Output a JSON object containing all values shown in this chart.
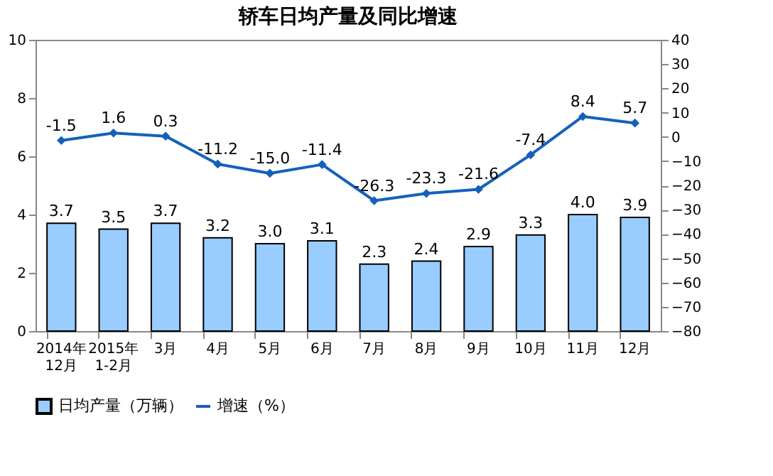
{
  "chart_data": {
    "type": "bar",
    "title": "轿车日均产量及同比增速",
    "categories": [
      "2014年\n12月",
      "2015年\n1-2月",
      "3月",
      "4月",
      "5月",
      "6月",
      "7月",
      "8月",
      "9月",
      "10月",
      "11月",
      "12月"
    ],
    "series": [
      {
        "name": "日均产量（万辆）",
        "color": "#99ccff",
        "values": [
          3.7,
          3.5,
          3.7,
          3.2,
          3.0,
          3.1,
          2.3,
          2.4,
          2.9,
          3.3,
          4.0,
          3.9
        ],
        "value_labels": [
          "3.7",
          "3.5",
          "3.7",
          "3.2",
          "3.0",
          "3.1",
          "2.3",
          "2.4",
          "2.9",
          "3.3",
          "4.0",
          "3.9"
        ]
      },
      {
        "name": "增速（%）",
        "type": "line",
        "axis": "y2",
        "color": "#1560bd",
        "marker": "diamond",
        "values": [
          -1.5,
          1.6,
          0.3,
          -11.2,
          -15.0,
          -11.4,
          -26.3,
          -23.3,
          -21.6,
          -7.4,
          8.4,
          5.7
        ],
        "value_labels": [
          "-1.5",
          "1.6",
          "0.3",
          "-11.2",
          "-15.0",
          "-11.4",
          "-26.3",
          "-23.3",
          "-21.6",
          "-7.4",
          "8.4",
          "5.7"
        ]
      }
    ],
    "ylim": [
      0,
      10
    ],
    "yticks": [
      0,
      2,
      4,
      6,
      8,
      10
    ],
    "y2lim": [
      -80,
      40
    ],
    "y2ticks": [
      -80,
      -70,
      -60,
      -50,
      -40,
      -30,
      -20,
      -10,
      0,
      10,
      20,
      30,
      40
    ],
    "legend": "bottom"
  }
}
